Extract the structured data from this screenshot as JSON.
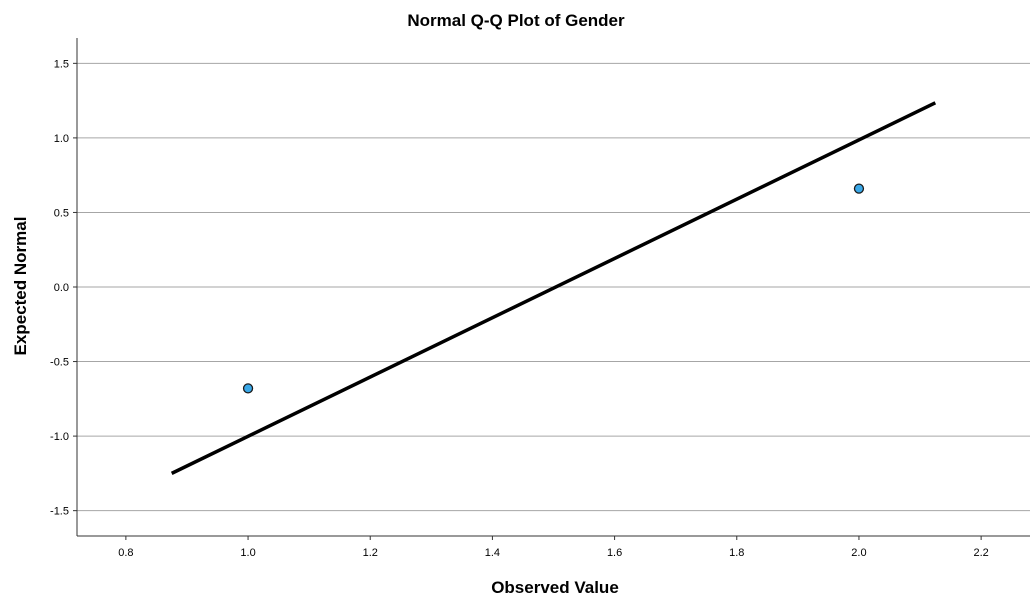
{
  "chart_data": {
    "type": "scatter",
    "title": "Normal Q-Q Plot of Gender",
    "xlabel": "Observed Value",
    "ylabel": "Expected Normal",
    "xlim": [
      0.72,
      2.28
    ],
    "ylim": [
      -1.67,
      1.67
    ],
    "x_ticks": [
      {
        "value": 0.8,
        "label": "0.8"
      },
      {
        "value": 1.0,
        "label": "1.0"
      },
      {
        "value": 1.2,
        "label": "1.2"
      },
      {
        "value": 1.4,
        "label": "1.4"
      },
      {
        "value": 1.6,
        "label": "1.6"
      },
      {
        "value": 1.8,
        "label": "1.8"
      },
      {
        "value": 2.0,
        "label": "2.0"
      },
      {
        "value": 2.2,
        "label": "2.2"
      }
    ],
    "y_ticks": [
      {
        "value": 1.5,
        "label": "1.5"
      },
      {
        "value": 1.0,
        "label": "1.0"
      },
      {
        "value": 0.5,
        "label": "0.5"
      },
      {
        "value": 0.0,
        "label": "0.0"
      },
      {
        "value": -0.5,
        "label": "-0.5"
      },
      {
        "value": -1.0,
        "label": "-1.0"
      },
      {
        "value": -1.5,
        "label": "-1.5"
      }
    ],
    "grid": {
      "horizontal": true,
      "vertical": false
    },
    "points": [
      {
        "x": 1.0,
        "y": -0.68
      },
      {
        "x": 2.0,
        "y": 0.66
      }
    ],
    "reference_line": {
      "x": [
        0.875,
        2.125
      ],
      "y": [
        -1.25,
        1.235
      ]
    },
    "colors": {
      "point_fill": "#3aa8e8",
      "point_stroke": "#1a1a1a",
      "line": "#000000",
      "grid": "#a6a6a6",
      "axis": "#333333"
    }
  }
}
